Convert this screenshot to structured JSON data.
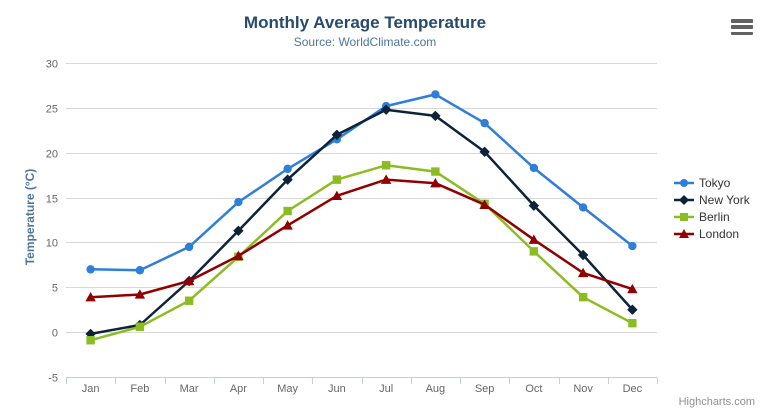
{
  "chart_data": {
    "type": "line",
    "title": "Monthly Average Temperature",
    "subtitle": "Source: WorldClimate.com",
    "xlabel": "",
    "ylabel": "Temperature (°C)",
    "categories": [
      "Jan",
      "Feb",
      "Mar",
      "Apr",
      "May",
      "Jun",
      "Jul",
      "Aug",
      "Sep",
      "Oct",
      "Nov",
      "Dec"
    ],
    "ylim": [
      -5,
      30
    ],
    "yticks": [
      -5,
      0,
      5,
      10,
      15,
      20,
      25,
      30
    ],
    "grid": true,
    "legend_position": "right",
    "series": [
      {
        "name": "Tokyo",
        "color": "#2f7ed8",
        "marker": "circle",
        "values": [
          7.0,
          6.9,
          9.5,
          14.5,
          18.2,
          21.5,
          25.2,
          26.5,
          23.3,
          18.3,
          13.9,
          9.6
        ]
      },
      {
        "name": "New York",
        "color": "#0d233a",
        "marker": "diamond",
        "values": [
          -0.2,
          0.8,
          5.7,
          11.3,
          17.0,
          22.0,
          24.8,
          24.1,
          20.1,
          14.1,
          8.6,
          2.5
        ]
      },
      {
        "name": "Berlin",
        "color": "#8bbc21",
        "marker": "square",
        "values": [
          -0.9,
          0.6,
          3.5,
          8.4,
          13.5,
          17.0,
          18.6,
          17.9,
          14.3,
          9.0,
          3.9,
          1.0
        ]
      },
      {
        "name": "London",
        "color": "#910000",
        "marker": "triangle",
        "values": [
          3.9,
          4.2,
          5.7,
          8.5,
          11.9,
          15.2,
          17.0,
          16.6,
          14.2,
          10.3,
          6.6,
          4.8
        ]
      }
    ]
  },
  "context_menu": {
    "icon": "hamburger-icon"
  },
  "credits": {
    "label": "Highcharts.com"
  },
  "colors": {
    "title": "#274b6d",
    "subtitle": "#4d759e",
    "axis_title": "#4d759e",
    "tick_label": "#666666",
    "grid": "#d8d8d8",
    "axis_line": "#c0d0e0",
    "legend_text": "#333333",
    "credits": "#909090",
    "menu_icon": "#616161"
  }
}
